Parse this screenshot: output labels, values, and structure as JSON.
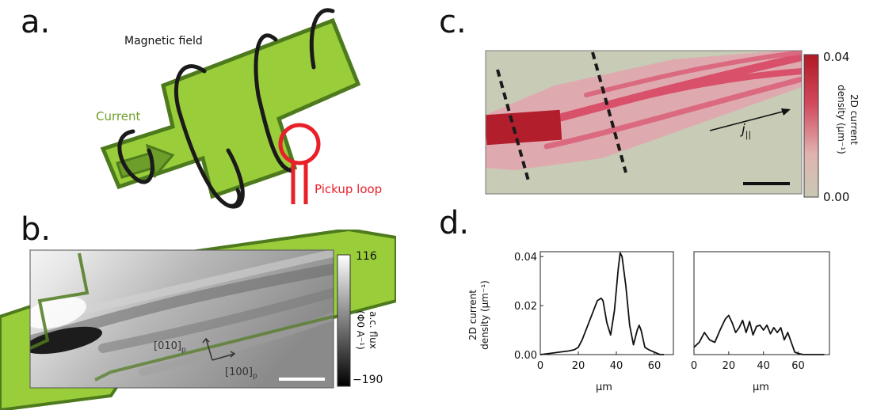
{
  "panels": {
    "a": {
      "letter": "a.",
      "magnetic_field": "Magnetic field",
      "current": "Current",
      "pickup_loop": "Pickup loop",
      "colors": {
        "device": "#9ACD3A",
        "device_edge": "#4E7A1E",
        "current_text": "#6E9E2A",
        "pickup": "#E8202A",
        "field": "#1a1a1a"
      }
    },
    "b": {
      "letter": "b.",
      "colorbar_max": "116",
      "colorbar_min": "−190",
      "colorbar_label": "a.c. flux",
      "colorbar_unit": "(Φ0 A⁻¹)",
      "dir_010": "[010]",
      "dir_100": "[100]",
      "dir_sub": "p"
    },
    "c": {
      "letter": "c.",
      "colorbar_max": "0.04",
      "colorbar_min": "0.00",
      "colorbar_label_line1": "2D current",
      "colorbar_label_line2": "density (μm⁻¹)",
      "current_symbol": "j",
      "current_sub": "||",
      "colors": {
        "high": "#B01A24",
        "low": "#C9C8B4"
      }
    },
    "d": {
      "letter": "d.",
      "ylabel_line1": "2D current",
      "ylabel_line2": "density (μm⁻¹)",
      "xlabel_left": "μm",
      "xlabel_right": "μm"
    }
  },
  "chart_data": [
    {
      "type": "line",
      "x": [
        0,
        5,
        10,
        15,
        18,
        20,
        22,
        25,
        28,
        30,
        32,
        33,
        35,
        37,
        39,
        41,
        42,
        43,
        45,
        47,
        49,
        51,
        52,
        53,
        55,
        57,
        60,
        63,
        65
      ],
      "series": [
        {
          "values": [
            0.0,
            0.0005,
            0.001,
            0.0015,
            0.002,
            0.003,
            0.006,
            0.012,
            0.018,
            0.022,
            0.023,
            0.022,
            0.013,
            0.008,
            0.018,
            0.035,
            0.0415,
            0.04,
            0.028,
            0.012,
            0.004,
            0.01,
            0.012,
            0.01,
            0.003,
            0.002,
            0.001,
            0.0,
            0.0
          ]
        }
      ],
      "xticks": [
        "0",
        "20",
        "40",
        "60"
      ],
      "yticks": [
        "0.00",
        "0.02",
        "0.04"
      ],
      "xlim": [
        0,
        70
      ],
      "ylim": [
        0,
        0.042
      ]
    },
    {
      "type": "line",
      "x": [
        0,
        3,
        6,
        9,
        12,
        15,
        18,
        20,
        22,
        24,
        26,
        28,
        30,
        32,
        34,
        36,
        38,
        40,
        42,
        44,
        46,
        48,
        50,
        52,
        54,
        56,
        58,
        60,
        63,
        66,
        70,
        75
      ],
      "series": [
        {
          "values": [
            0.003,
            0.005,
            0.009,
            0.006,
            0.005,
            0.01,
            0.0145,
            0.016,
            0.013,
            0.009,
            0.011,
            0.014,
            0.009,
            0.0135,
            0.008,
            0.0115,
            0.012,
            0.01,
            0.012,
            0.0085,
            0.011,
            0.009,
            0.011,
            0.006,
            0.009,
            0.005,
            0.001,
            0.0005,
            0.0,
            0.0,
            0.0,
            0.0
          ]
        }
      ],
      "xticks": [
        "0",
        "20",
        "40",
        "60"
      ],
      "xlim": [
        0,
        78
      ],
      "ylim": [
        0,
        0.042
      ]
    }
  ]
}
